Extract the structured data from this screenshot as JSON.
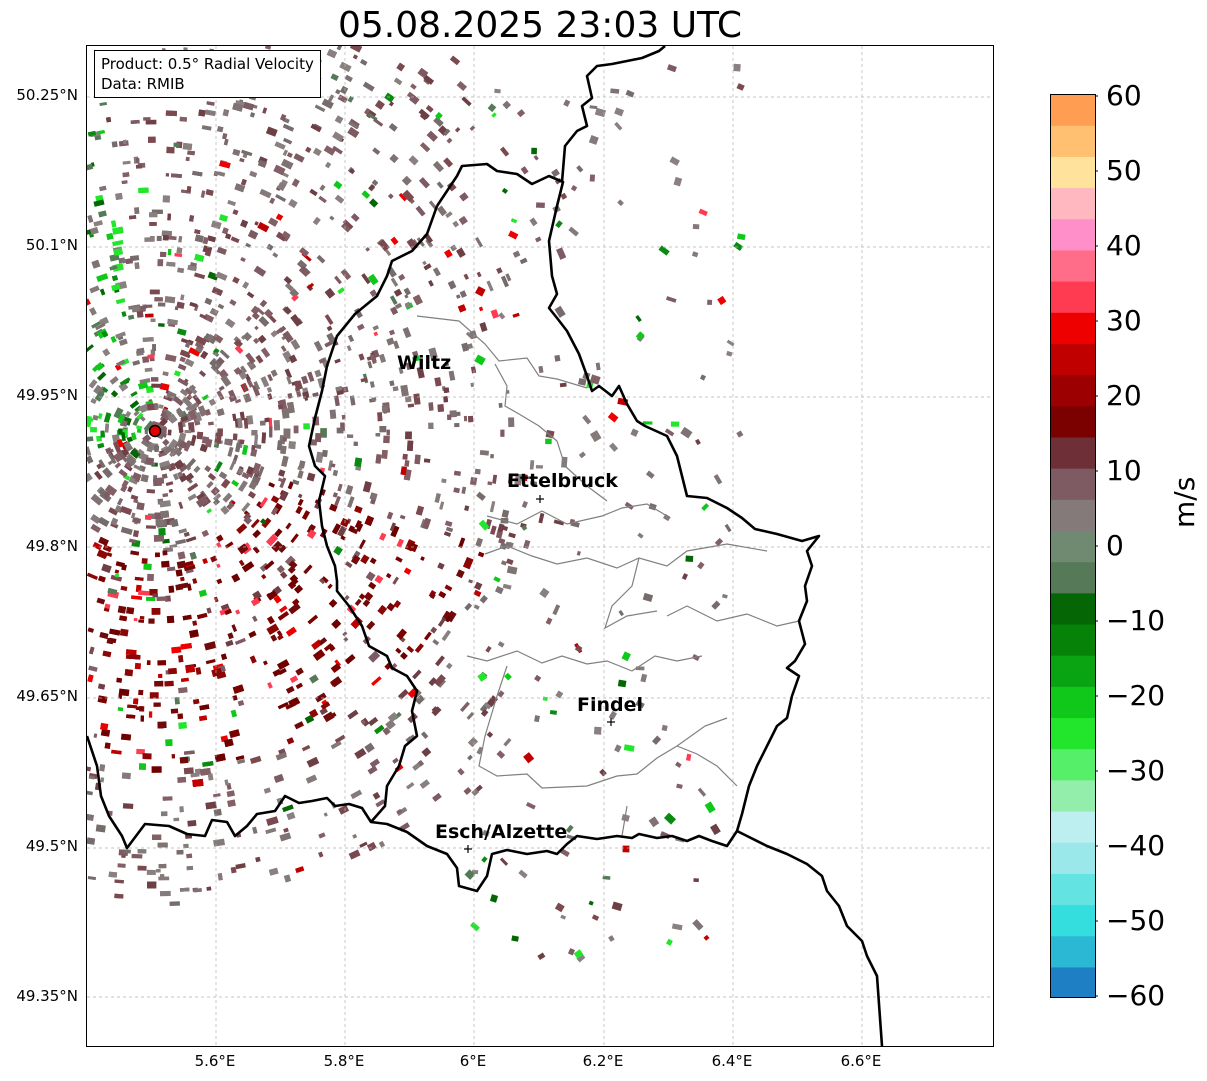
{
  "title": "05.08.2025 23:03 UTC",
  "info": {
    "product_line": "Product: 0.5° Radial Velocity",
    "data_line": "Data: RMIB"
  },
  "axes": {
    "lat_labels": [
      "50.25°N",
      "50.1°N",
      "49.95°N",
      "49.8°N",
      "49.65°N",
      "49.5°N",
      "49.35°N"
    ],
    "lon_labels": [
      "5.6°E",
      "5.8°E",
      "6°E",
      "6.2°E",
      "6.4°E",
      "6.6°E"
    ]
  },
  "colorbar": {
    "unit": "m/s",
    "ticks": [
      "60",
      "50",
      "40",
      "30",
      "20",
      "10",
      "0",
      "−10",
      "−20",
      "−30",
      "−40",
      "−50",
      "−60"
    ],
    "range": [
      -60,
      60
    ],
    "colors_bottom_to_top": [
      "#1f7fc4",
      "#2bb8d4",
      "#35dede",
      "#64e3e3",
      "#9be8ea",
      "#bdeef0",
      "#94eeab",
      "#55ef6a",
      "#22e62b",
      "#10c81a",
      "#0aa312",
      "#078209",
      "#056605",
      "#567a58",
      "#6f8a70",
      "#857a7a",
      "#7e5a62",
      "#6e2f36",
      "#7b0000",
      "#9c0000",
      "#c00000",
      "#ee0000",
      "#ff3b52",
      "#ff6d88",
      "#ff8fc9",
      "#ffb7c0",
      "#ffe29b",
      "#ffc072",
      "#ff9d52"
    ]
  },
  "map": {
    "radar_site": "red-dot",
    "cities": [
      {
        "name": "Wiltz"
      },
      {
        "name": "Ettelbruck"
      },
      {
        "name": "Findel"
      },
      {
        "name": "Esch/Alzette"
      }
    ],
    "velocity_colors": {
      "outbound": "#7b0000",
      "neutral": "#7f7272",
      "inbound": "#0a8a10"
    }
  }
}
